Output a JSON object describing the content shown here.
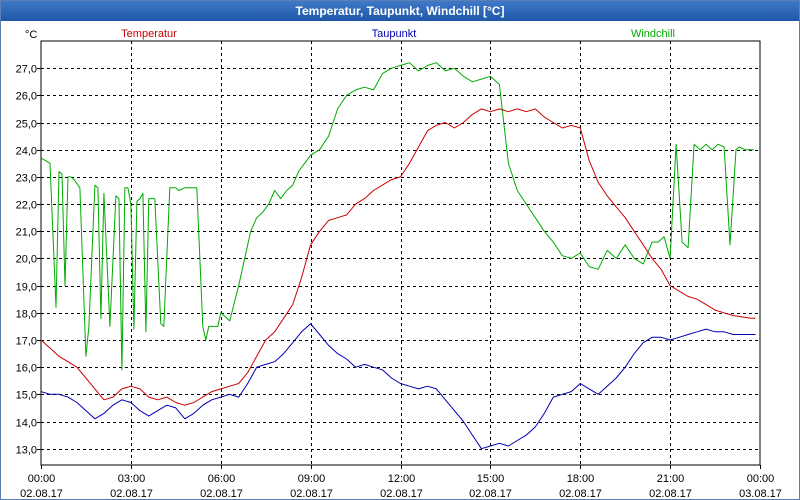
{
  "window": {
    "title": "Temperatur, Taupunkt, Windchill [°C]"
  },
  "chart_data": {
    "type": "line",
    "title": "Temperatur, Taupunkt, Windchill [°C]",
    "ylabel": "°C",
    "xlabel": "",
    "ylim": [
      12.4,
      28.0
    ],
    "xlim": [
      0,
      24
    ],
    "grid": true,
    "legend": "top",
    "yticks": [
      13,
      14,
      15,
      16,
      17,
      18,
      19,
      20,
      21,
      22,
      23,
      24,
      25,
      26,
      27
    ],
    "ytick_labels": [
      "13,0",
      "14,0",
      "15,0",
      "16,0",
      "17,0",
      "18,0",
      "19,0",
      "20,0",
      "21,0",
      "22,0",
      "23,0",
      "24,0",
      "25,0",
      "26,0",
      "27,0"
    ],
    "xticks": [
      {
        "t": 0,
        "time": "00:00",
        "date": "02.08.17"
      },
      {
        "t": 3,
        "time": "03:00",
        "date": "02.08.17"
      },
      {
        "t": 6,
        "time": "06:00",
        "date": "02.08.17"
      },
      {
        "t": 9,
        "time": "09:00",
        "date": "02.08.17"
      },
      {
        "t": 12,
        "time": "12:00",
        "date": "02.08.17"
      },
      {
        "t": 15,
        "time": "15:00",
        "date": "02.08.17"
      },
      {
        "t": 18,
        "time": "18:00",
        "date": "02.08.17"
      },
      {
        "t": 21,
        "time": "21:00",
        "date": "02.08.17"
      },
      {
        "t": 24,
        "time": "00:00",
        "date": "03.08.17"
      }
    ],
    "series": [
      {
        "name": "Temperatur",
        "color": "#cc0000",
        "x": [
          0,
          0.3,
          0.6,
          0.9,
          1.2,
          1.5,
          1.8,
          2.1,
          2.4,
          2.7,
          3.0,
          3.3,
          3.6,
          3.9,
          4.2,
          4.5,
          4.8,
          5.1,
          5.4,
          5.7,
          6.0,
          6.3,
          6.6,
          6.9,
          7.2,
          7.5,
          7.8,
          8.1,
          8.4,
          8.7,
          9.0,
          9.3,
          9.6,
          9.9,
          10.2,
          10.5,
          10.8,
          11.1,
          11.4,
          11.7,
          12.0,
          12.3,
          12.6,
          12.9,
          13.2,
          13.5,
          13.8,
          14.1,
          14.4,
          14.7,
          15.0,
          15.3,
          15.6,
          15.9,
          16.2,
          16.5,
          16.8,
          17.1,
          17.4,
          17.7,
          18.0,
          18.3,
          18.6,
          18.9,
          19.2,
          19.5,
          19.8,
          20.1,
          20.4,
          20.7,
          21.0,
          21.3,
          21.6,
          21.9,
          22.2,
          22.5,
          22.8,
          23.1,
          23.4,
          23.7,
          23.85
        ],
        "values": [
          17.0,
          16.7,
          16.4,
          16.2,
          16.0,
          15.6,
          15.2,
          14.8,
          14.9,
          15.2,
          15.3,
          15.2,
          14.9,
          14.8,
          14.9,
          14.7,
          14.6,
          14.7,
          14.9,
          15.1,
          15.2,
          15.3,
          15.4,
          15.8,
          16.4,
          17.0,
          17.3,
          17.8,
          18.3,
          19.3,
          20.5,
          21.0,
          21.4,
          21.5,
          21.6,
          22.0,
          22.2,
          22.5,
          22.7,
          22.9,
          23.0,
          23.5,
          24.1,
          24.7,
          24.9,
          25.0,
          24.8,
          25.0,
          25.3,
          25.5,
          25.4,
          25.5,
          25.4,
          25.5,
          25.4,
          25.5,
          25.2,
          25.0,
          24.8,
          24.9,
          24.8,
          23.6,
          22.8,
          22.3,
          21.9,
          21.5,
          21.0,
          20.5,
          20.0,
          19.6,
          19.0,
          18.8,
          18.6,
          18.5,
          18.3,
          18.1,
          18.0,
          17.9,
          17.85,
          17.8,
          17.8
        ]
      },
      {
        "name": "Taupunkt",
        "color": "#0000b0",
        "x": [
          0,
          0.3,
          0.6,
          0.9,
          1.2,
          1.5,
          1.8,
          2.1,
          2.4,
          2.7,
          3.0,
          3.3,
          3.6,
          3.9,
          4.2,
          4.5,
          4.8,
          5.1,
          5.4,
          5.7,
          6.0,
          6.3,
          6.6,
          6.9,
          7.2,
          7.5,
          7.8,
          8.1,
          8.4,
          8.7,
          9.0,
          9.3,
          9.6,
          9.9,
          10.2,
          10.5,
          10.8,
          11.1,
          11.4,
          11.7,
          12.0,
          12.3,
          12.6,
          12.9,
          13.2,
          13.5,
          13.8,
          14.1,
          14.4,
          14.7,
          15.0,
          15.3,
          15.6,
          15.9,
          16.2,
          16.5,
          16.8,
          17.1,
          17.4,
          17.7,
          18.0,
          18.3,
          18.6,
          18.9,
          19.2,
          19.5,
          19.8,
          20.1,
          20.4,
          20.7,
          21.0,
          21.3,
          21.6,
          21.9,
          22.2,
          22.5,
          22.8,
          23.1,
          23.4,
          23.7,
          23.85
        ],
        "values": [
          15.1,
          15.0,
          15.0,
          14.9,
          14.7,
          14.4,
          14.1,
          14.3,
          14.6,
          14.8,
          14.7,
          14.4,
          14.2,
          14.4,
          14.6,
          14.5,
          14.1,
          14.3,
          14.6,
          14.8,
          14.9,
          15.0,
          14.9,
          15.4,
          16.0,
          16.1,
          16.2,
          16.5,
          16.9,
          17.3,
          17.6,
          17.2,
          16.8,
          16.5,
          16.3,
          16.0,
          16.1,
          16.0,
          15.9,
          15.6,
          15.4,
          15.3,
          15.2,
          15.3,
          15.2,
          14.8,
          14.4,
          14.0,
          13.5,
          13.0,
          13.1,
          13.2,
          13.1,
          13.3,
          13.5,
          13.8,
          14.3,
          14.9,
          15.0,
          15.1,
          15.4,
          15.2,
          15.0,
          15.3,
          15.6,
          16.0,
          16.5,
          16.9,
          17.1,
          17.1,
          17.0,
          17.1,
          17.2,
          17.3,
          17.4,
          17.3,
          17.3,
          17.2,
          17.2,
          17.2,
          17.2
        ]
      },
      {
        "name": "Windchill",
        "color": "#00aa00",
        "x": [
          0,
          0.3,
          0.5,
          0.6,
          0.7,
          0.8,
          0.9,
          1.0,
          1.1,
          1.3,
          1.5,
          1.6,
          1.8,
          1.9,
          2.0,
          2.1,
          2.3,
          2.5,
          2.6,
          2.7,
          2.8,
          2.9,
          3.0,
          3.1,
          3.2,
          3.3,
          3.4,
          3.5,
          3.6,
          3.7,
          3.8,
          4.0,
          4.1,
          4.3,
          4.5,
          4.6,
          4.8,
          5.1,
          5.2,
          5.4,
          5.5,
          5.6,
          5.7,
          5.8,
          5.9,
          6.0,
          6.3,
          6.6,
          6.9,
          7.0,
          7.2,
          7.4,
          7.6,
          7.8,
          8.0,
          8.2,
          8.4,
          8.6,
          8.8,
          9.0,
          9.3,
          9.6,
          9.9,
          10.2,
          10.5,
          10.8,
          11.1,
          11.4,
          11.7,
          12.0,
          12.3,
          12.6,
          12.9,
          13.2,
          13.5,
          13.8,
          14.1,
          14.4,
          14.7,
          15.0,
          15.3,
          15.6,
          15.9,
          16.2,
          16.5,
          16.8,
          17.1,
          17.4,
          17.7,
          18.0,
          18.3,
          18.6,
          18.9,
          19.2,
          19.5,
          19.8,
          20.1,
          20.4,
          20.6,
          20.8,
          21.0,
          21.2,
          21.4,
          21.6,
          21.8,
          22.0,
          22.2,
          22.4,
          22.6,
          22.8,
          23.0,
          23.2,
          23.3,
          23.5,
          23.6,
          23.7,
          23.8
        ],
        "values": [
          23.7,
          23.5,
          18.2,
          23.2,
          23.1,
          19.0,
          23.0,
          23.0,
          22.9,
          22.6,
          16.4,
          17.5,
          22.7,
          22.6,
          17.8,
          22.4,
          17.5,
          22.3,
          22.2,
          15.9,
          22.6,
          22.6,
          22.0,
          17.4,
          22.1,
          22.2,
          22.4,
          17.3,
          22.2,
          22.2,
          22.2,
          17.6,
          17.5,
          22.6,
          22.6,
          22.5,
          22.6,
          22.6,
          22.6,
          17.5,
          17.0,
          17.5,
          17.5,
          17.5,
          17.5,
          18.0,
          17.7,
          19.0,
          20.5,
          21.0,
          21.5,
          21.7,
          22.0,
          22.5,
          22.2,
          22.5,
          22.7,
          23.2,
          23.5,
          23.8,
          24.0,
          24.5,
          25.5,
          26.0,
          26.2,
          26.3,
          26.2,
          26.8,
          27.0,
          27.1,
          27.2,
          26.9,
          27.1,
          27.2,
          26.9,
          27.0,
          26.7,
          26.5,
          26.6,
          26.7,
          26.4,
          23.5,
          22.5,
          22.0,
          21.5,
          21.0,
          20.6,
          20.1,
          20.0,
          20.2,
          19.7,
          19.6,
          20.3,
          20.0,
          20.5,
          20.0,
          19.8,
          20.6,
          20.6,
          20.8,
          20.0,
          24.2,
          20.6,
          20.4,
          24.2,
          24.0,
          24.2,
          24.0,
          24.2,
          24.1,
          20.5,
          24.0,
          24.1,
          24.0,
          24.0,
          24.0,
          24.0
        ]
      }
    ]
  }
}
